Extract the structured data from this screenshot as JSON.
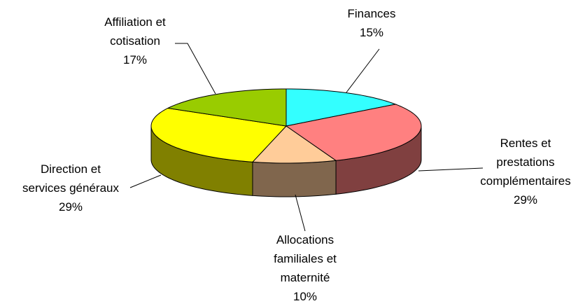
{
  "chart_data": {
    "type": "pie3d",
    "categories": [
      "Finances",
      "Rentes et prestations complémentaires",
      "Allocations familiales et maternité",
      "Direction et services généraux",
      "Affiliation et cotisation"
    ],
    "values": [
      15,
      29,
      10,
      29,
      17
    ],
    "value_labels": [
      "15%",
      "29%",
      "10%",
      "29%",
      "17%"
    ],
    "colors": [
      "#33ffff",
      "#ff8080",
      "#ffcc99",
      "#ffff00",
      "#99cc00"
    ]
  }
}
